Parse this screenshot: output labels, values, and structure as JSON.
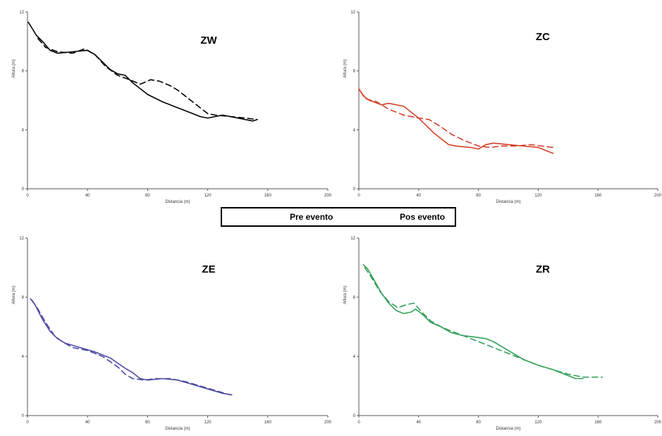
{
  "legend": {
    "pre_label": "Pre evento",
    "pos_label": "Pos evento"
  },
  "chart_data": [
    {
      "type": "line",
      "title": "ZW",
      "xlabel": "Distancia (m)",
      "ylabel": "Altura (m)",
      "xlim": [
        0,
        200
      ],
      "ylim": [
        0,
        12
      ],
      "xticks": [
        0,
        40,
        80,
        120,
        160,
        200
      ],
      "yticks": [
        0,
        4,
        8,
        12
      ],
      "color": "#000000",
      "series": [
        {
          "name": "Pre evento",
          "style": "solid",
          "x": [
            0.5,
            3,
            6,
            10,
            15,
            20,
            30,
            40,
            45,
            50,
            55,
            60,
            65,
            70,
            75,
            80,
            90,
            100,
            110,
            115,
            120,
            125,
            130,
            140,
            150,
            153
          ],
          "y": [
            11.3,
            10.9,
            10.4,
            10.0,
            9.4,
            9.2,
            9.3,
            9.4,
            9.1,
            8.6,
            8.1,
            7.8,
            7.7,
            7.2,
            6.8,
            6.4,
            5.9,
            5.5,
            5.1,
            4.9,
            4.8,
            4.9,
            5.0,
            4.8,
            4.6,
            4.7
          ]
        },
        {
          "name": "Pos evento",
          "style": "dashed",
          "x": [
            7,
            12,
            20,
            30,
            38,
            45,
            52,
            60,
            68,
            75,
            82,
            88,
            95,
            100,
            105,
            110,
            115,
            120,
            125,
            135,
            145,
            153
          ],
          "y": [
            10.2,
            9.6,
            9.3,
            9.2,
            9.5,
            9.1,
            8.3,
            7.7,
            7.4,
            7.1,
            7.4,
            7.3,
            7.0,
            6.7,
            6.3,
            5.9,
            5.5,
            5.1,
            5.0,
            4.9,
            4.8,
            4.7
          ]
        }
      ]
    },
    {
      "type": "line",
      "title": "ZC",
      "xlabel": "Distancia (m)",
      "ylabel": "Altura (m)",
      "xlim": [
        0,
        200
      ],
      "ylim": [
        0,
        12
      ],
      "xticks": [
        0,
        40,
        80,
        120,
        160,
        200
      ],
      "yticks": [
        0,
        4,
        8,
        12
      ],
      "color": "#d5412a",
      "series": [
        {
          "name": "Pre evento",
          "style": "solid",
          "x": [
            0,
            3,
            7,
            10,
            15,
            20,
            30,
            35,
            40,
            45,
            50,
            55,
            60,
            65,
            70,
            75,
            80,
            85,
            90,
            100,
            110,
            120,
            130
          ],
          "y": [
            6.8,
            6.3,
            6.0,
            5.9,
            5.7,
            5.8,
            5.6,
            5.2,
            4.8,
            4.3,
            3.8,
            3.4,
            3.0,
            2.9,
            2.85,
            2.8,
            2.7,
            3.0,
            3.1,
            3.0,
            2.9,
            2.8,
            2.4
          ]
        },
        {
          "name": "Pos evento",
          "style": "dashed",
          "x": [
            1,
            5,
            12,
            20,
            30,
            40,
            47,
            55,
            62,
            70,
            80,
            88,
            95,
            105,
            115,
            130
          ],
          "y": [
            6.6,
            6.1,
            5.9,
            5.4,
            5.0,
            4.8,
            4.7,
            4.2,
            3.7,
            3.3,
            2.9,
            2.8,
            2.9,
            2.9,
            3.0,
            2.8
          ]
        }
      ]
    },
    {
      "type": "line",
      "title": "ZE",
      "xlabel": "Distancia (m)",
      "ylabel": "Altura (m)",
      "xlim": [
        0,
        200
      ],
      "ylim": [
        0,
        12
      ],
      "xticks": [
        0,
        40,
        80,
        120,
        160,
        200
      ],
      "yticks": [
        0,
        4,
        8,
        12
      ],
      "color": "#4b4ba3",
      "series": [
        {
          "name": "Pre evento",
          "style": "solid",
          "x": [
            2,
            5,
            10,
            15,
            20,
            25,
            35,
            45,
            55,
            65,
            70,
            75,
            80,
            90,
            100,
            110,
            120,
            130,
            136
          ],
          "y": [
            7.9,
            7.5,
            6.5,
            5.7,
            5.2,
            4.9,
            4.6,
            4.3,
            3.9,
            3.2,
            2.9,
            2.5,
            2.4,
            2.5,
            2.4,
            2.1,
            1.8,
            1.5,
            1.4
          ]
        },
        {
          "name": "Pos evento",
          "style": "dashed",
          "x": [
            3,
            7,
            12,
            18,
            23,
            30,
            40,
            50,
            60,
            65,
            70,
            78,
            85,
            95,
            105,
            115,
            125,
            135
          ],
          "y": [
            7.8,
            7.2,
            6.3,
            5.4,
            5.0,
            4.6,
            4.4,
            4.0,
            3.3,
            2.8,
            2.5,
            2.4,
            2.5,
            2.5,
            2.3,
            2.0,
            1.7,
            1.4
          ]
        }
      ]
    },
    {
      "type": "line",
      "title": "ZR",
      "xlabel": "Distancia (m)",
      "ylabel": "Altura (m)",
      "xlim": [
        0,
        200
      ],
      "ylim": [
        0,
        12
      ],
      "xticks": [
        0,
        40,
        80,
        120,
        160,
        200
      ],
      "yticks": [
        0,
        4,
        8,
        12
      ],
      "color": "#33a05a",
      "series": [
        {
          "name": "Pre evento",
          "style": "solid",
          "x": [
            3,
            6,
            10,
            15,
            20,
            25,
            30,
            35,
            38,
            42,
            48,
            55,
            62,
            70,
            78,
            85,
            90,
            100,
            110,
            120,
            130,
            140,
            145,
            150
          ],
          "y": [
            10.2,
            9.9,
            9.2,
            8.3,
            7.6,
            7.1,
            6.9,
            7.0,
            7.2,
            6.9,
            6.3,
            6.0,
            5.6,
            5.4,
            5.3,
            5.2,
            5.0,
            4.4,
            3.8,
            3.4,
            3.1,
            2.7,
            2.5,
            2.5
          ]
        },
        {
          "name": "Pos evento",
          "style": "dashed",
          "x": [
            4,
            8,
            14,
            20,
            26,
            32,
            37,
            42,
            48,
            55,
            62,
            70,
            80,
            90,
            100,
            110,
            120,
            130,
            140,
            150,
            163
          ],
          "y": [
            10.0,
            9.4,
            8.4,
            7.7,
            7.3,
            7.5,
            7.6,
            7.0,
            6.4,
            6.0,
            5.7,
            5.4,
            5.0,
            4.6,
            4.2,
            3.8,
            3.4,
            3.1,
            2.8,
            2.6,
            2.6
          ]
        }
      ]
    }
  ]
}
